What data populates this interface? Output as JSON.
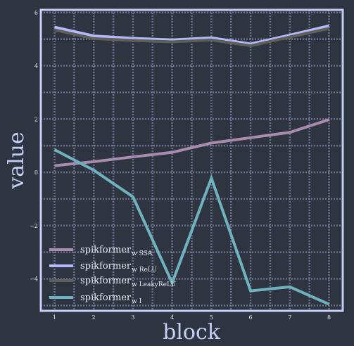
{
  "chart_data": {
    "type": "line",
    "title": "",
    "xlabel": "block",
    "ylabel": "value",
    "x": [
      1,
      2,
      3,
      4,
      5,
      6,
      7,
      8
    ],
    "xlim": [
      0.65,
      8.35
    ],
    "ylim": [
      -5.2,
      6.1
    ],
    "xticks": [
      1,
      2,
      3,
      4,
      5,
      6,
      7,
      8
    ],
    "yticks": [
      -4,
      -2,
      0,
      2,
      4,
      6
    ],
    "grid": true,
    "legend_position": "lower-left",
    "series": [
      {
        "name": "spikformer",
        "name_sub": "w SSA",
        "color": "#a98bb0",
        "values": [
          0.25,
          0.4,
          0.58,
          0.75,
          1.1,
          1.3,
          1.5,
          1.98
        ]
      },
      {
        "name": "spikformer",
        "name_sub": "w ReLU",
        "color": "#b4b8f8",
        "values": [
          5.45,
          5.12,
          5.03,
          4.97,
          5.05,
          4.82,
          5.15,
          5.5
        ]
      },
      {
        "name": "spikformer",
        "name_sub": "w LeakyReLU",
        "color": "#5e5f58",
        "values": [
          5.35,
          5.02,
          4.95,
          4.9,
          4.97,
          4.75,
          5.08,
          5.4
        ]
      },
      {
        "name": "spikformer",
        "name_sub": "w I",
        "color": "#6fb2bf",
        "values": [
          0.85,
          0.08,
          -0.92,
          -4.15,
          -0.22,
          -4.45,
          -4.3,
          -4.95
        ]
      }
    ]
  }
}
